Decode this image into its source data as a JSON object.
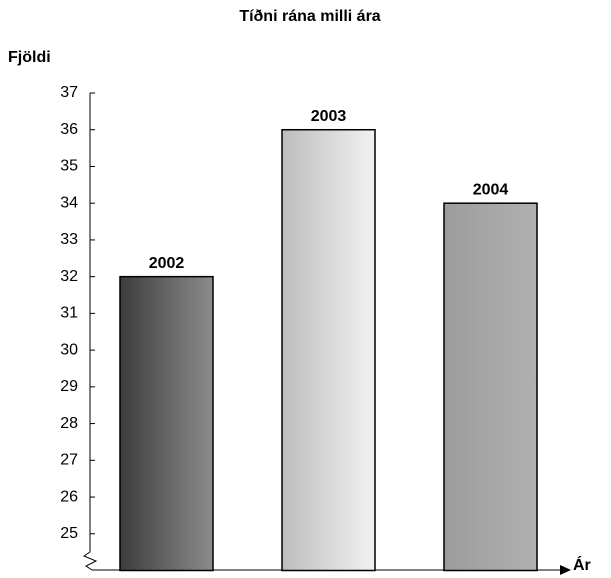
{
  "chart_data": {
    "type": "bar",
    "title": "Tíðni rána milli ára",
    "y_label": "Fjöldi",
    "x_label": "Ár",
    "categories": [
      "2002",
      "2003",
      "2004"
    ],
    "values": [
      32,
      36,
      34
    ],
    "colors": [
      [
        "#3c3c3c",
        "#8c8c8c"
      ],
      [
        "#bdbdbd",
        "#f2f2f2"
      ],
      [
        "#9c9c9c",
        "#b0b0b0"
      ]
    ],
    "ylim": [
      24,
      37
    ],
    "yticks": [
      25,
      26,
      27,
      28,
      29,
      30,
      31,
      32,
      33,
      34,
      35,
      36,
      37
    ],
    "grid": false
  }
}
